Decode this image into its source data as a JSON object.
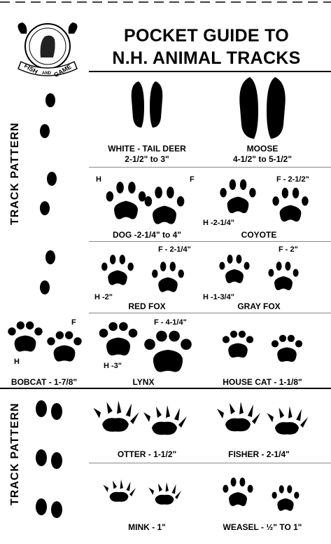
{
  "header": {
    "title_line1": "POCKET GUIDE TO",
    "title_line2": "N.H. ANIMAL TRACKS",
    "logo_text_left": "FISH",
    "logo_text_mid": "AND",
    "logo_text_right": "GAME"
  },
  "sidebar": {
    "track_pattern_top": "TRACK PATTERN",
    "track_pattern_bottom": "TRACK PATTERN"
  },
  "tracks": {
    "deer": {
      "name": "WHITE - TAIL DEER",
      "size": "2-1/2\" to 3\""
    },
    "moose": {
      "name": "MOOSE",
      "size": "4-1/2\" to 5-1/2\""
    },
    "dog": {
      "label": "DOG -2-1/4\" to 4\"",
      "hind": "H",
      "front": "F"
    },
    "coyote": {
      "label": "COYOTE",
      "front": "F - 2-1/2\"",
      "hind": "H -2-1/4\""
    },
    "red_fox": {
      "label": "RED FOX",
      "front": "F - 2-1/4\"",
      "hind": "H -2\""
    },
    "gray_fox": {
      "label": "GRAY FOX",
      "front": "F - 2\"",
      "hind": "H -1-3/4\""
    },
    "bobcat": {
      "label": "BOBCAT - 1-7/8\"",
      "front": "F",
      "hind": "H"
    },
    "lynx": {
      "label": "LYNX",
      "front": "F - 4-1/4\"",
      "hind": "H -3\""
    },
    "house_cat": {
      "label": "HOUSE CAT - 1-1/8\""
    },
    "otter": {
      "label": "OTTER - 1-1/2\""
    },
    "fisher": {
      "label": "FISHER - 2-1/4\""
    },
    "mink": {
      "label": "MINK - 1\""
    },
    "weasel": {
      "label": "WEASEL - ½\" TO 1\""
    }
  }
}
